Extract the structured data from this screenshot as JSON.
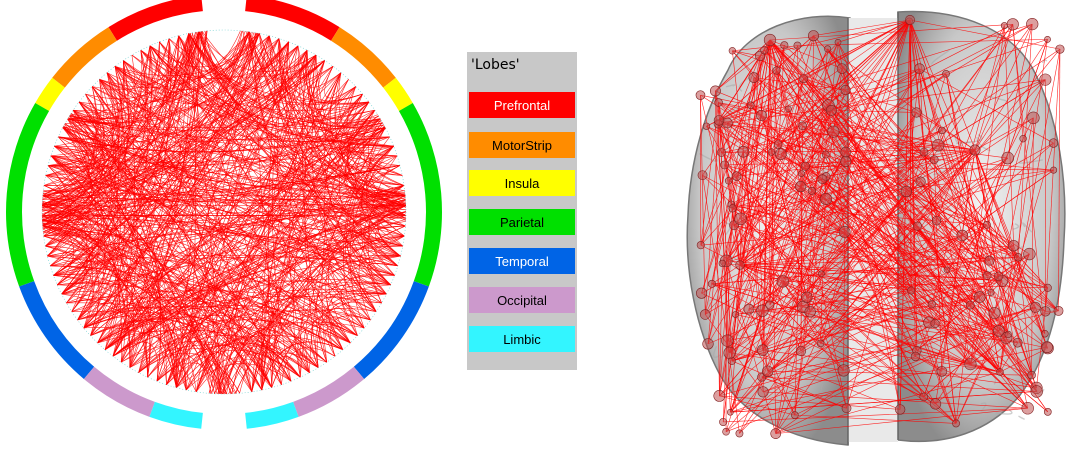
{
  "legend": {
    "title": "'Lobes'",
    "items": [
      {
        "label": "Prefrontal",
        "color": "#ff0000",
        "text_color": "#ffffff"
      },
      {
        "label": "MotorStrip",
        "color": "#ff8c00",
        "text_color": "#000000"
      },
      {
        "label": "Insula",
        "color": "#ffff00",
        "text_color": "#000000"
      },
      {
        "label": "Parietal",
        "color": "#00e000",
        "text_color": "#000000"
      },
      {
        "label": "Temporal",
        "color": "#0064e6",
        "text_color": "#ffffff"
      },
      {
        "label": "Occipital",
        "color": "#cc99cc",
        "text_color": "#000000"
      },
      {
        "label": "Limbic",
        "color": "#33f5ff",
        "text_color": "#000000"
      }
    ]
  },
  "connectivity": {
    "edge_color": "#ff0000",
    "brain_color": "#9a9a9a"
  }
}
